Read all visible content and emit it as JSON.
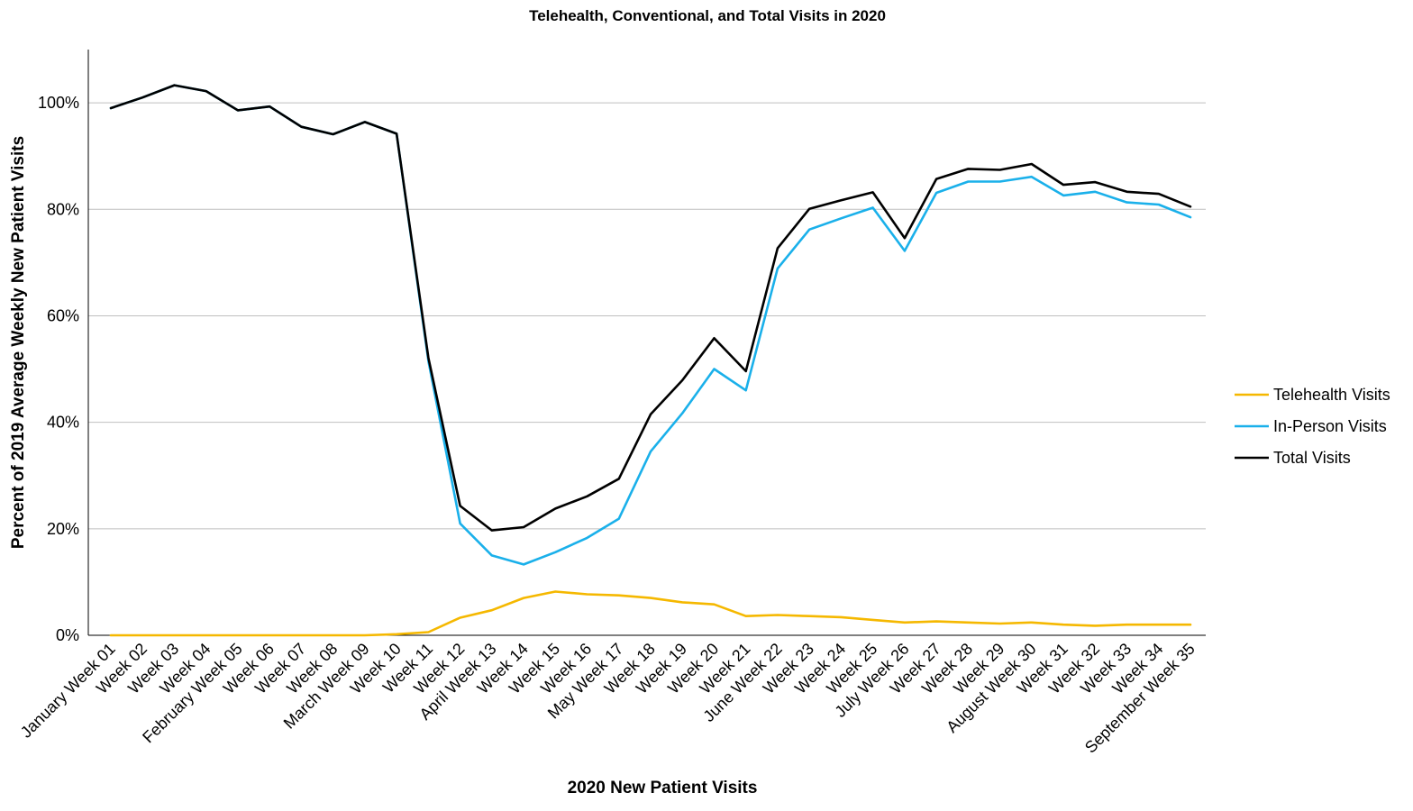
{
  "chart_data": {
    "type": "line",
    "title": "Telehealth, Conventional, and Total Visits in 2020",
    "xlabel": "2020 New Patient Visits",
    "ylabel": "Percent of 2019 Average Weekly New Patient Visits",
    "ylim": [
      0,
      110
    ],
    "yticks": [
      0,
      20,
      40,
      60,
      80,
      100
    ],
    "ytick_labels": [
      "0%",
      "20%",
      "40%",
      "60%",
      "80%",
      "100%"
    ],
    "grid": true,
    "legend_position": "right",
    "categories": [
      "January Week 01",
      "Week 02",
      "Week 03",
      "Week 04",
      "February Week 05",
      "Week 06",
      "Week 07",
      "Week 08",
      "March Week 09",
      "Week 10",
      "Week 11",
      "Week 12",
      "April Week 13",
      "Week 14",
      "Week 15",
      "Week 16",
      "May Week 17",
      "Week 18",
      "Week 19",
      "Week 20",
      "Week 21",
      "June Week 22",
      "Week 23",
      "Week 24",
      "Week 25",
      "July Week 26",
      "Week 27",
      "Week 28",
      "Week 29",
      "August Week 30",
      "Week 31",
      "Week 32",
      "Week 33",
      "Week 34",
      "September Week 35"
    ],
    "series": [
      {
        "name": "Telehealth Visits",
        "color": "#f5b800",
        "values": [
          0,
          0,
          0,
          0,
          0,
          0,
          0,
          0,
          0,
          0.2,
          0.6,
          3.3,
          4.7,
          7.0,
          8.2,
          7.7,
          7.5,
          7.0,
          6.2,
          5.8,
          3.6,
          3.8,
          3.6,
          3.4,
          2.9,
          2.4,
          2.6,
          2.4,
          2.2,
          2.4,
          2.0,
          1.8,
          2.0,
          2.0,
          2.0
        ]
      },
      {
        "name": "In-Person Visits",
        "color": "#1ab0ea",
        "values": [
          99.0,
          101.0,
          103.3,
          102.2,
          98.6,
          99.3,
          95.5,
          94.1,
          96.4,
          94.2,
          51.5,
          21.0,
          15.0,
          13.3,
          15.6,
          18.3,
          21.9,
          34.5,
          41.7,
          50.0,
          46.0,
          68.9,
          76.2,
          78.3,
          80.3,
          72.2,
          83.1,
          85.2,
          85.2,
          86.1,
          82.6,
          83.3,
          81.3,
          80.9,
          78.5
        ]
      },
      {
        "name": "Total Visits",
        "color": "#000000",
        "values": [
          99.0,
          101.0,
          103.3,
          102.2,
          98.6,
          99.3,
          95.5,
          94.1,
          96.4,
          94.2,
          52.1,
          24.3,
          19.7,
          20.3,
          23.8,
          26.1,
          29.4,
          41.5,
          47.9,
          55.8,
          49.6,
          72.7,
          80.1,
          81.7,
          83.2,
          74.6,
          85.7,
          87.6,
          87.4,
          88.5,
          84.6,
          85.1,
          83.3,
          82.9,
          80.5
        ]
      }
    ]
  }
}
